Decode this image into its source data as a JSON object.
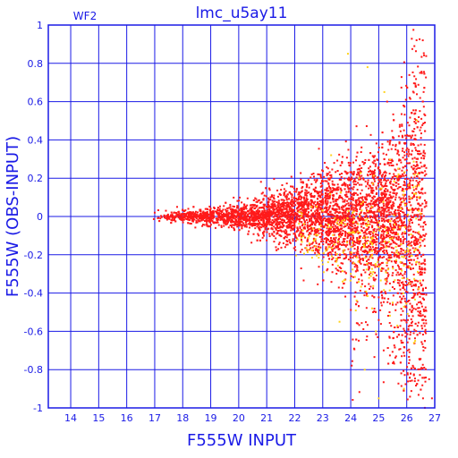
{
  "chart_data": {
    "type": "scatter",
    "title": "lmc_u5ay11",
    "panel_label": "WF2",
    "xlabel": "F555W INPUT",
    "ylabel": "F555W (OBS-INPUT)",
    "xlim": [
      13.2,
      27
    ],
    "ylim": [
      -1,
      1
    ],
    "xticks": [
      14,
      15,
      16,
      17,
      18,
      19,
      20,
      21,
      22,
      23,
      24,
      25,
      26,
      27
    ],
    "yticks": [
      -1,
      -0.8,
      -0.6,
      -0.4,
      -0.2,
      0,
      0.2,
      0.4,
      0.6,
      0.8,
      1
    ],
    "grid": true,
    "colors": {
      "axes": "#1a1ae6",
      "grid": "#1a1ae6",
      "series_main": "#ff1a1a",
      "series_secondary": "#ffd21a"
    },
    "series": [
      {
        "color_key": "series_main",
        "description_points": [
          [
            17.0,
            0.02
          ],
          [
            17.2,
            -0.01
          ],
          [
            17.4,
            0.03
          ],
          [
            17.6,
            0.0
          ],
          [
            17.8,
            0.05
          ],
          [
            18.0,
            -0.02
          ],
          [
            18.2,
            0.04
          ],
          [
            18.4,
            0.01
          ],
          [
            18.6,
            -0.01
          ],
          [
            18.8,
            0.02
          ],
          [
            19.0,
            0.0
          ],
          [
            19.3,
            0.01
          ],
          [
            19.6,
            -0.02
          ],
          [
            19.9,
            0.02
          ],
          [
            20.2,
            0.0
          ],
          [
            20.5,
            0.03
          ],
          [
            20.8,
            -0.02
          ],
          [
            21.1,
            0.05
          ],
          [
            21.4,
            -0.03
          ],
          [
            21.7,
            0.04
          ],
          [
            22.0,
            -0.05
          ],
          [
            22.3,
            0.06
          ],
          [
            22.6,
            -0.06
          ],
          [
            22.9,
            0.08
          ],
          [
            23.2,
            -0.1
          ],
          [
            23.5,
            0.12
          ],
          [
            23.8,
            -0.15
          ],
          [
            24.1,
            0.18
          ],
          [
            24.4,
            -0.2
          ],
          [
            24.7,
            0.22
          ],
          [
            25.0,
            -0.25
          ],
          [
            25.2,
            0.3
          ],
          [
            25.4,
            -0.35
          ],
          [
            25.6,
            0.35
          ],
          [
            25.8,
            -0.45
          ],
          [
            26.0,
            0.3
          ],
          [
            26.2,
            -0.55
          ],
          [
            26.4,
            -0.4
          ],
          [
            26.6,
            -0.7
          ],
          [
            26.8,
            -0.85
          ],
          [
            26.9,
            -0.95
          ],
          [
            25.3,
            0.6
          ],
          [
            24.8,
            -0.5
          ],
          [
            25.9,
            0.45
          ],
          [
            26.1,
            -0.75
          ]
        ]
      },
      {
        "color_key": "series_secondary",
        "description_points": [
          [
            22.1,
            -0.12
          ],
          [
            22.6,
            0.05
          ],
          [
            23.0,
            -0.25
          ],
          [
            23.3,
            0.32
          ],
          [
            23.6,
            -0.55
          ],
          [
            24.0,
            -0.3
          ],
          [
            24.3,
            0.2
          ],
          [
            24.5,
            -0.8
          ],
          [
            24.9,
            -0.6
          ],
          [
            25.2,
            0.65
          ],
          [
            25.5,
            -0.45
          ],
          [
            25.7,
            0.25
          ],
          [
            25.9,
            -0.9
          ],
          [
            26.1,
            -0.35
          ],
          [
            26.3,
            -0.65
          ],
          [
            23.9,
            0.85
          ],
          [
            24.6,
            0.78
          ],
          [
            25.0,
            -0.95
          ]
        ]
      }
    ]
  }
}
